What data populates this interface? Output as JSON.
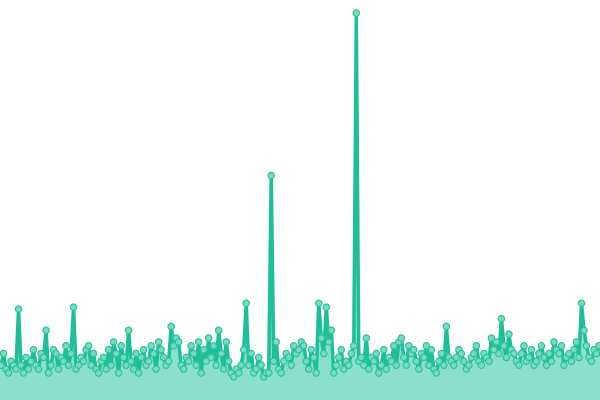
{
  "chart_data": {
    "type": "area",
    "title": "",
    "xlabel": "",
    "ylabel": "",
    "ylim": [
      0,
      100
    ],
    "grid": false,
    "legend": "none",
    "markers": true,
    "colors": {
      "line": "#1dbf96",
      "fill": "#8be0cb",
      "marker_fill": "#79d9c1",
      "marker_stroke": "#2cc49c"
    },
    "values": [
      9,
      12,
      8,
      7,
      10,
      9,
      8,
      23.5,
      9,
      7,
      11,
      8,
      10,
      13,
      9,
      8,
      12,
      11,
      18,
      7,
      9,
      13,
      12,
      8,
      11,
      10,
      14,
      9,
      12,
      24,
      8,
      9,
      11,
      10,
      13,
      14,
      9,
      12,
      8,
      7,
      10,
      11,
      8,
      13,
      9,
      15,
      12,
      7,
      14,
      11,
      9,
      18,
      10,
      8,
      12,
      7,
      11,
      13,
      9,
      10,
      14,
      12,
      8,
      15,
      13,
      11,
      9,
      10,
      19,
      14,
      16,
      15,
      9,
      8,
      11,
      10,
      14,
      12,
      9,
      15,
      7,
      13,
      10,
      16,
      11,
      14,
      9,
      18,
      12,
      8,
      15,
      10,
      7,
      6,
      8,
      7,
      9,
      13,
      25,
      9,
      12,
      7,
      8,
      11,
      9,
      6,
      7,
      7,
      58,
      10,
      15,
      8,
      7,
      10,
      12,
      11,
      9,
      14,
      12,
      13,
      15,
      14,
      10,
      8,
      13,
      11,
      7,
      25,
      16,
      12,
      24,
      15,
      18,
      7,
      9,
      11,
      13,
      8,
      10,
      9,
      12,
      14,
      100,
      10,
      11,
      9,
      16,
      8,
      11,
      10,
      12,
      7,
      9,
      13,
      8,
      11,
      10,
      14,
      9,
      15,
      16,
      11,
      9,
      14,
      12,
      13,
      10,
      8,
      12,
      11,
      14,
      9,
      13,
      8,
      7,
      10,
      12,
      9,
      19,
      11,
      10,
      9,
      11,
      13,
      12,
      10,
      8,
      9,
      11,
      12,
      14,
      10,
      9,
      12,
      11,
      10,
      16,
      13,
      15,
      12,
      21,
      14,
      11,
      17,
      13,
      12,
      10,
      9,
      12,
      14,
      10,
      11,
      13,
      9,
      10,
      12,
      14,
      11,
      9,
      12,
      10,
      15,
      13,
      12,
      14,
      9,
      11,
      12,
      10,
      13,
      15,
      11,
      25,
      18,
      14,
      11,
      10,
      13,
      12,
      14
    ]
  }
}
